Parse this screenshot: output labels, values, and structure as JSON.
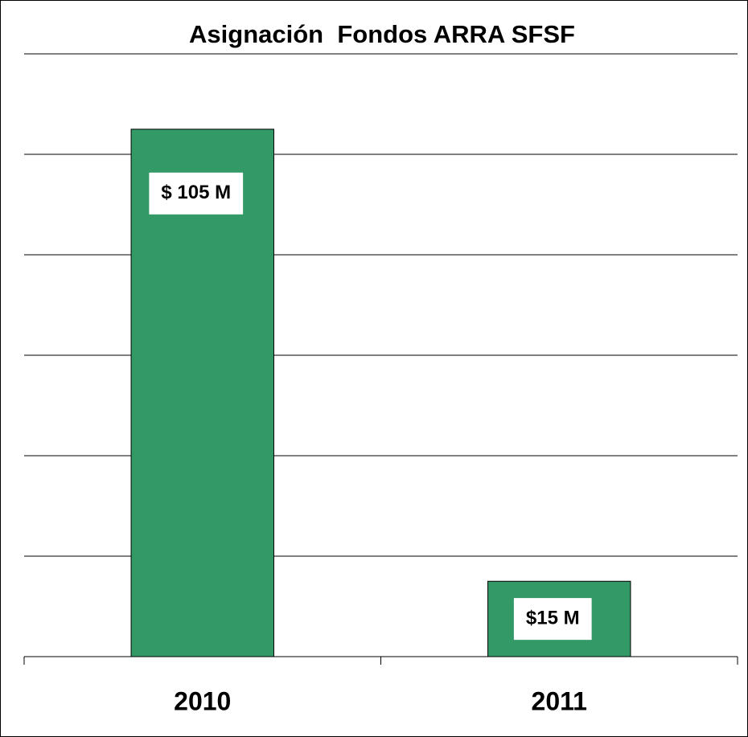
{
  "chart_data": {
    "type": "bar",
    "title": "Asignación  Fondos ARRA SFSF",
    "categories": [
      "2010",
      "2011"
    ],
    "values": [
      105,
      15
    ],
    "value_labels": [
      "$ 105 M",
      "$15 M"
    ],
    "color": "#339966",
    "ylim": [
      0,
      120
    ],
    "yticks": [
      0,
      20,
      40,
      60,
      80,
      100,
      120
    ],
    "grid": true
  }
}
